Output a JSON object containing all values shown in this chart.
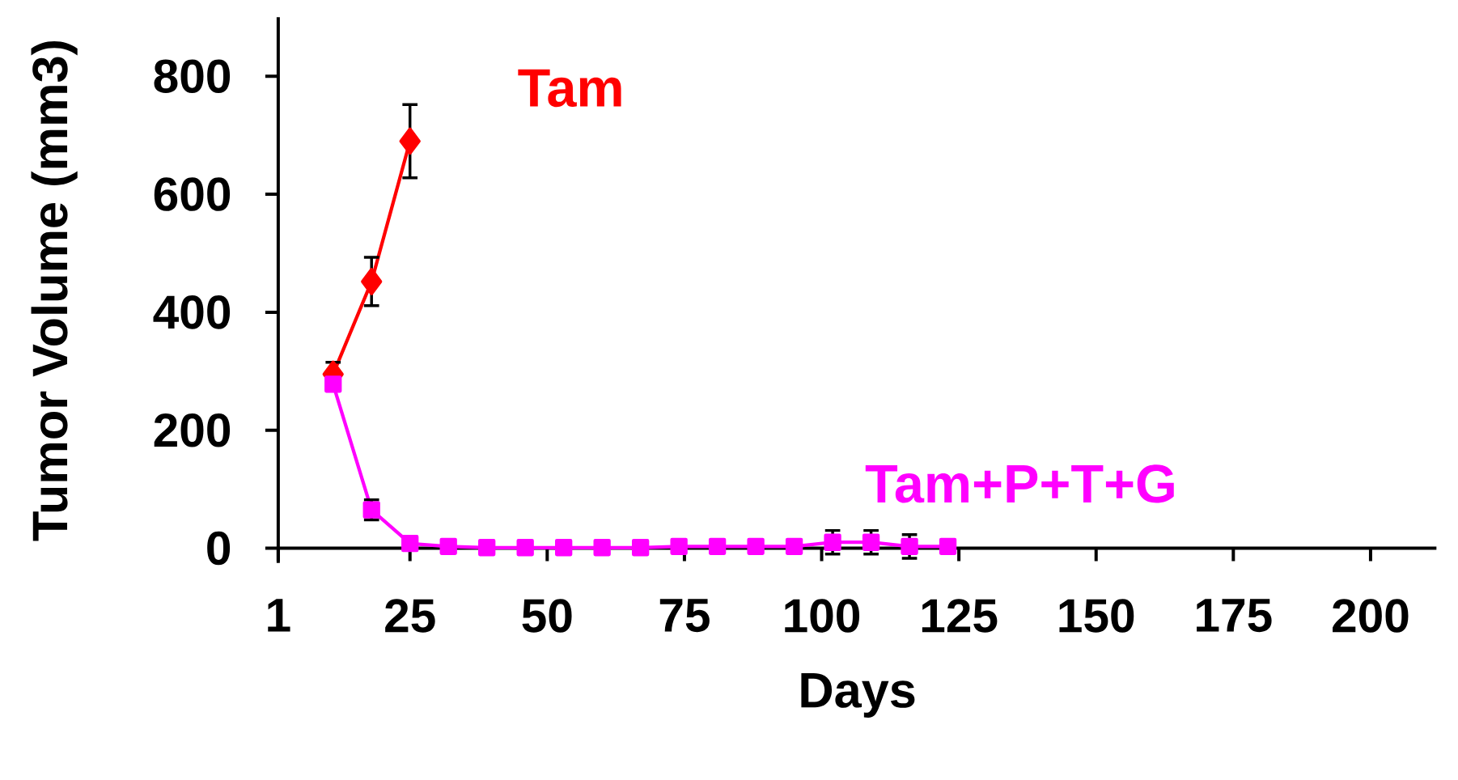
{
  "chart_data": {
    "type": "line",
    "xlabel": "Days",
    "ylabel": "Tumor Volume (mm3)",
    "xlim": [
      1,
      212
    ],
    "xticks": [
      1,
      25,
      50,
      75,
      100,
      125,
      150,
      175,
      200
    ],
    "ylim": [
      -25,
      900
    ],
    "yticks": [
      0,
      200,
      400,
      600,
      800
    ],
    "grid": false,
    "series": [
      {
        "name": "Tam",
        "color": "#ff0000",
        "marker": "diamond",
        "x": [
          11,
          18,
          25
        ],
        "values": [
          295,
          452,
          690
        ],
        "errors": [
          20,
          41,
          62
        ]
      },
      {
        "name": "Tam+P+T+G",
        "color": "#ff00ff",
        "marker": "square",
        "x": [
          11,
          18,
          25,
          32,
          39,
          46,
          53,
          60,
          67,
          74,
          81,
          88,
          95,
          102,
          109,
          116,
          123
        ],
        "values": [
          278,
          65,
          8,
          3,
          1,
          1,
          1,
          1,
          1,
          3,
          3,
          3,
          3,
          10,
          10,
          3,
          3
        ],
        "errors": [
          null,
          17,
          null,
          null,
          null,
          null,
          null,
          null,
          null,
          null,
          null,
          null,
          null,
          20,
          20,
          20,
          null
        ]
      }
    ]
  }
}
